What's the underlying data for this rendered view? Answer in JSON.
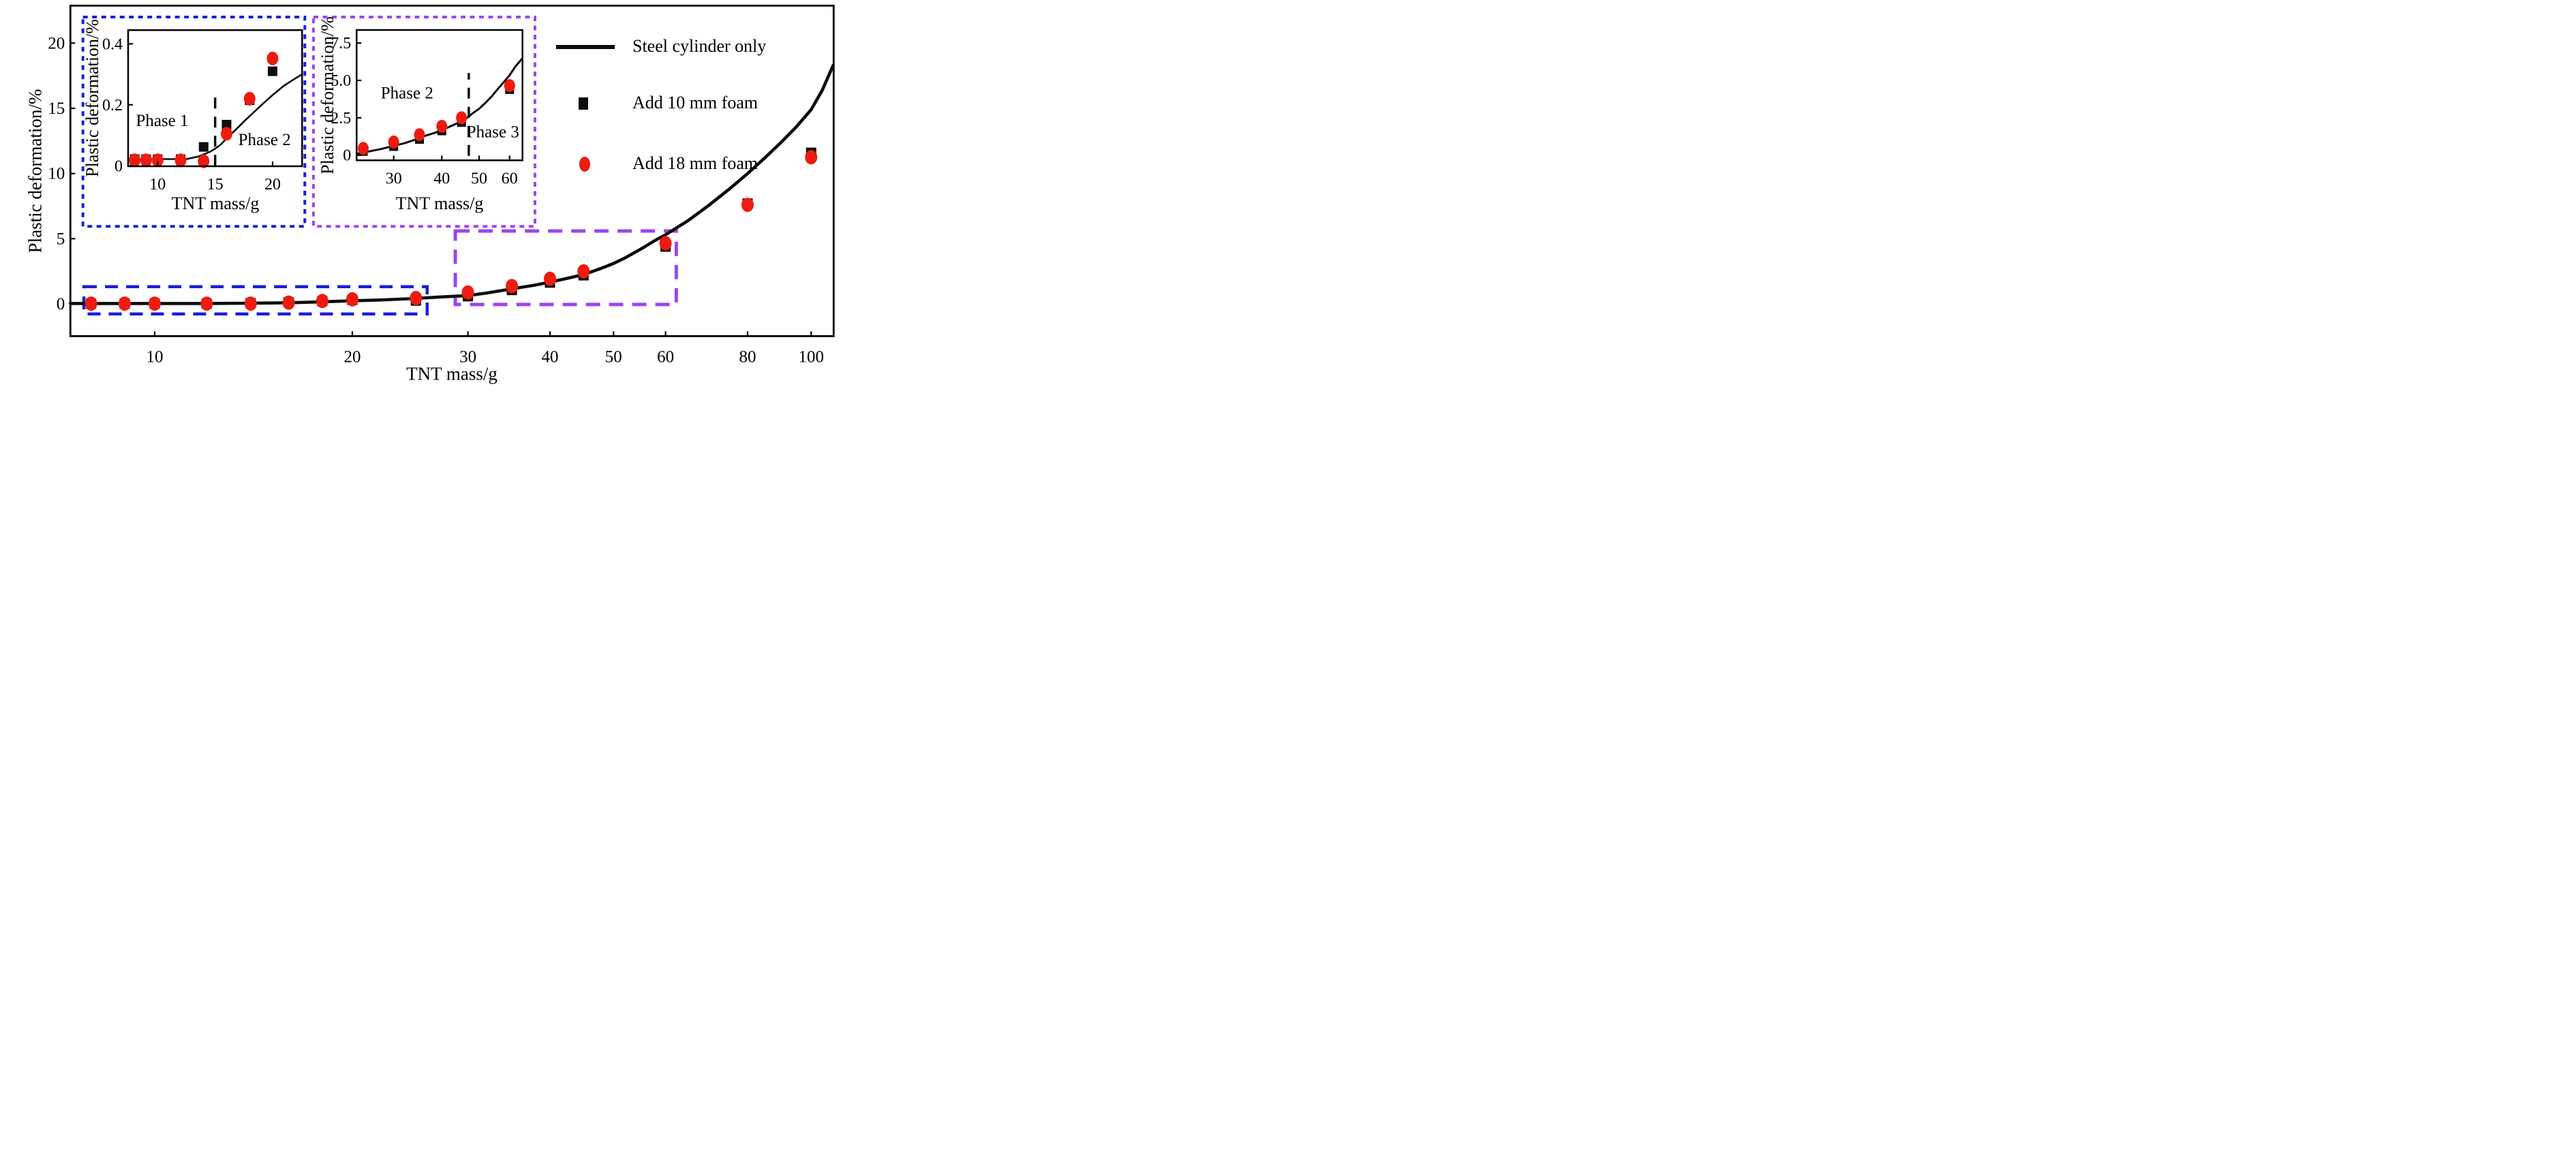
{
  "chart_data": {
    "type": "line+scatter",
    "title": "",
    "xlabel": "TNT mass/g",
    "ylabel": "Plastic deformation/%",
    "grid": false,
    "legend_position": "upper right",
    "colors": {
      "curve": "#0d0d0d",
      "square": "#0d0d0d",
      "circle": "#ee1b10",
      "blue_box": "#1d1dd8",
      "purple_box": "#9d44f2",
      "axis": "#000000"
    },
    "legend": [
      {
        "marker": "line",
        "color": "#0d0d0d",
        "label": "Steel cylinder only"
      },
      {
        "marker": "square",
        "color": "#0d0d0d",
        "label": "Add 10 mm foam"
      },
      {
        "marker": "circle",
        "color": "#ee1b10",
        "label": "Add 18 mm foam"
      }
    ],
    "main": {
      "xscale": "log",
      "xlim": [
        7.44,
        108
      ],
      "ylim": [
        -2.47,
        22.88
      ],
      "x_ticks": [
        {
          "v": 10,
          "label": "10"
        },
        {
          "v": 20,
          "label": "20"
        },
        {
          "v": 30,
          "label": "30"
        },
        {
          "v": 40,
          "label": "40"
        },
        {
          "v": 50,
          "label": "50"
        },
        {
          "v": 60,
          "label": "60"
        },
        {
          "v": 80,
          "label": "80"
        },
        {
          "v": 100,
          "label": "100"
        }
      ],
      "y_ticks": [
        {
          "v": 0,
          "label": "0"
        },
        {
          "v": 5,
          "label": "5"
        },
        {
          "v": 10,
          "label": "10"
        },
        {
          "v": 15,
          "label": "15"
        },
        {
          "v": 20,
          "label": "20"
        }
      ],
      "curve": [
        [
          7.44,
          0.03
        ],
        [
          9,
          0.03
        ],
        [
          10,
          0.03
        ],
        [
          11,
          0.03
        ],
        [
          12,
          0.03
        ],
        [
          13,
          0.04
        ],
        [
          14,
          0.05
        ],
        [
          15,
          0.07
        ],
        [
          16,
          0.09
        ],
        [
          17,
          0.12
        ],
        [
          18,
          0.16
        ],
        [
          19,
          0.2
        ],
        [
          20,
          0.24
        ],
        [
          22,
          0.3
        ],
        [
          25,
          0.42
        ],
        [
          27,
          0.52
        ],
        [
          30,
          0.64
        ],
        [
          32,
          0.83
        ],
        [
          35,
          1.15
        ],
        [
          38,
          1.44
        ],
        [
          40,
          1.67
        ],
        [
          42,
          1.9
        ],
        [
          45,
          2.25
        ],
        [
          48,
          2.75
        ],
        [
          50,
          3.1
        ],
        [
          52,
          3.52
        ],
        [
          55,
          4.2
        ],
        [
          58,
          4.9
        ],
        [
          60,
          5.3
        ],
        [
          65,
          6.4
        ],
        [
          70,
          7.6
        ],
        [
          75,
          8.8
        ],
        [
          80,
          10.0
        ],
        [
          85,
          11.2
        ],
        [
          90,
          12.4
        ],
        [
          95,
          13.6
        ],
        [
          100,
          14.9
        ],
        [
          104,
          16.4
        ],
        [
          108,
          18.3
        ]
      ],
      "squares": [
        [
          8,
          0.02
        ],
        [
          9,
          0.02
        ],
        [
          10,
          0.02
        ],
        [
          12,
          0.02
        ],
        [
          14,
          0.06
        ],
        [
          16,
          0.13
        ],
        [
          18,
          0.22
        ],
        [
          20,
          0.31
        ],
        [
          25,
          0.25
        ],
        [
          30,
          0.58
        ],
        [
          35,
          1.06
        ],
        [
          40,
          1.63
        ],
        [
          45,
          2.19
        ],
        [
          60,
          4.39
        ],
        [
          80,
          7.7
        ],
        [
          100,
          11.6
        ]
      ],
      "circles": [
        [
          8,
          0.02
        ],
        [
          9,
          0.02
        ],
        [
          10,
          0.02
        ],
        [
          12,
          0.02
        ],
        [
          14,
          0.02
        ],
        [
          16,
          0.1
        ],
        [
          18,
          0.22
        ],
        [
          20,
          0.35
        ],
        [
          25,
          0.45
        ],
        [
          30,
          0.88
        ],
        [
          35,
          1.37
        ],
        [
          40,
          1.93
        ],
        [
          45,
          2.5
        ],
        [
          60,
          4.65
        ],
        [
          80,
          7.6
        ],
        [
          100,
          11.25
        ]
      ],
      "zoom_boxes": [
        {
          "color": "blue",
          "x0": 7.8,
          "y0": -0.77,
          "x1": 26.0,
          "y1": 1.32
        },
        {
          "color": "purple",
          "x0": 28.7,
          "y0": -0.05,
          "x1": 62.3,
          "y1": 5.59
        }
      ]
    },
    "insets": [
      {
        "box_color": "blue",
        "xscale": "linear",
        "xlim": [
          7.43,
          22.56
        ],
        "ylim": [
          0,
          0.445
        ],
        "xlabel": "TNT mass/g",
        "ylabel": "Plastic deformation/%",
        "x_ticks": [
          {
            "v": 10,
            "label": "10"
          },
          {
            "v": 15,
            "label": "15"
          },
          {
            "v": 20,
            "label": "20"
          }
        ],
        "y_ticks": [
          {
            "v": 0,
            "label": "0"
          },
          {
            "v": 0.2,
            "label": "0.2"
          },
          {
            "v": 0.4,
            "label": "0.4"
          }
        ],
        "curve": [
          [
            7.43,
            0.022
          ],
          [
            10,
            0.022
          ],
          [
            12,
            0.022
          ],
          [
            12.5,
            0.022
          ],
          [
            13,
            0.026
          ],
          [
            13.5,
            0.03
          ],
          [
            14,
            0.037
          ],
          [
            14.5,
            0.045
          ],
          [
            15,
            0.056
          ],
          [
            15.5,
            0.07
          ],
          [
            16,
            0.09
          ],
          [
            16.5,
            0.108
          ],
          [
            17,
            0.126
          ],
          [
            17.5,
            0.145
          ],
          [
            18,
            0.163
          ],
          [
            19,
            0.198
          ],
          [
            20,
            0.232
          ],
          [
            21,
            0.263
          ],
          [
            22,
            0.287
          ],
          [
            22.56,
            0.3
          ]
        ],
        "squares": [
          [
            8,
            0.022
          ],
          [
            9,
            0.022
          ],
          [
            10,
            0.022
          ],
          [
            12,
            0.022
          ],
          [
            14,
            0.062
          ],
          [
            16,
            0.135
          ],
          [
            18,
            0.215
          ],
          [
            20,
            0.31
          ]
        ],
        "circles": [
          [
            8,
            0.018
          ],
          [
            9,
            0.018
          ],
          [
            10,
            0.018
          ],
          [
            12,
            0.018
          ],
          [
            14,
            0.015
          ],
          [
            16,
            0.105
          ],
          [
            18,
            0.22
          ],
          [
            20,
            0.352
          ]
        ],
        "vline": {
          "x": 15,
          "y0": 0,
          "y1": 0.235
        },
        "annotations": [
          {
            "text": "Phase 1",
            "x": 10.4,
            "y": 0.13
          },
          {
            "text": "Phase 2",
            "x": 19.3,
            "y": 0.068
          }
        ]
      },
      {
        "box_color": "purple",
        "xscale": "log",
        "xlim": [
          24.1,
          64.6
        ],
        "ylim": [
          -0.35,
          8.38
        ],
        "xlabel": "TNT mass/g",
        "ylabel": "Plastic deformation/%",
        "x_ticks": [
          {
            "v": 30,
            "label": "30"
          },
          {
            "v": 40,
            "label": "40"
          },
          {
            "v": 50,
            "label": "50"
          },
          {
            "v": 60,
            "label": "60"
          }
        ],
        "y_ticks": [
          {
            "v": 0,
            "label": "0"
          },
          {
            "v": 2.5,
            "label": "2.5"
          },
          {
            "v": 5,
            "label": "5.0"
          },
          {
            "v": 7.5,
            "label": "7.5"
          }
        ],
        "curve": [
          [
            24.1,
            0.1
          ],
          [
            25,
            0.17
          ],
          [
            26,
            0.26
          ],
          [
            27,
            0.34
          ],
          [
            28,
            0.43
          ],
          [
            30,
            0.62
          ],
          [
            32,
            0.8
          ],
          [
            34,
            1.02
          ],
          [
            35,
            1.15
          ],
          [
            36,
            1.27
          ],
          [
            38,
            1.46
          ],
          [
            40,
            1.67
          ],
          [
            42,
            1.92
          ],
          [
            44,
            2.15
          ],
          [
            45,
            2.27
          ],
          [
            46,
            2.42
          ],
          [
            47,
            2.58
          ],
          [
            48,
            2.78
          ],
          [
            50,
            3.1
          ],
          [
            52,
            3.52
          ],
          [
            54,
            3.95
          ],
          [
            55,
            4.2
          ],
          [
            56,
            4.45
          ],
          [
            58,
            4.9
          ],
          [
            60,
            5.35
          ],
          [
            62,
            5.9
          ],
          [
            64.6,
            6.45
          ]
        ],
        "squares": [
          [
            25,
            0.25
          ],
          [
            30,
            0.58
          ],
          [
            35,
            1.06
          ],
          [
            40,
            1.63
          ],
          [
            45,
            2.19
          ],
          [
            60,
            4.39
          ]
        ],
        "circles": [
          [
            25,
            0.45
          ],
          [
            30,
            0.88
          ],
          [
            35,
            1.37
          ],
          [
            40,
            1.93
          ],
          [
            45,
            2.5
          ],
          [
            60,
            4.65
          ]
        ],
        "vline": {
          "x": 47,
          "y0": -0.05,
          "y1": 5.5
        },
        "annotations": [
          {
            "text": "Phase 2",
            "x": 32.5,
            "y": 3.8
          },
          {
            "text": "Phase 3",
            "x": 54.3,
            "y": 1.2
          }
        ]
      }
    ]
  }
}
